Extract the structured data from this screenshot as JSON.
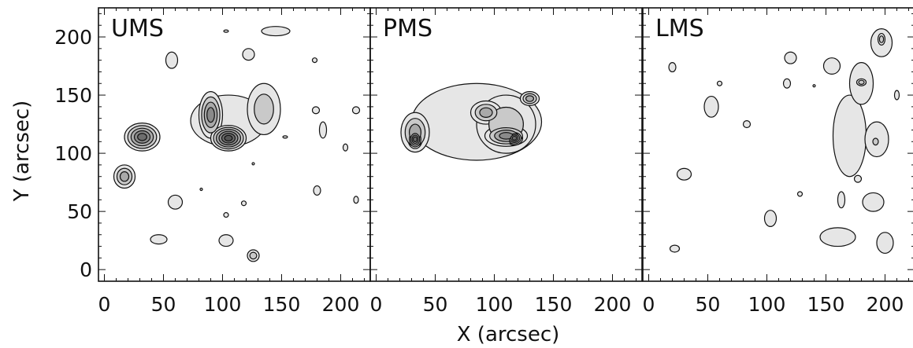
{
  "chart_data": {
    "type": "contour",
    "xlabel": "X (arcsec)",
    "ylabel": "Y (arcsec)",
    "xlim": [
      -5,
      225
    ],
    "ylim": [
      -10,
      225
    ],
    "xticks": [
      "0",
      "50",
      "100",
      "150",
      "200"
    ],
    "yticks": [
      "0",
      "50",
      "100",
      "150",
      "200"
    ],
    "fill_colors": [
      "#e6e6e6",
      "#c9c9c9",
      "#a9a9a9",
      "#8a8a8a",
      "#6e6e6e",
      "#555555"
    ],
    "line_color": "#111111",
    "panels": [
      {
        "label": "UMS",
        "regions": [
          {
            "cx": 105,
            "cy": 128,
            "rx": 32,
            "ry": 22,
            "levels": 1
          },
          {
            "cx": 135,
            "cy": 138,
            "rx": 14,
            "ry": 22,
            "levels": 2
          },
          {
            "cx": 90,
            "cy": 133,
            "rx": 10,
            "ry": 20,
            "levels": 4
          },
          {
            "cx": 105,
            "cy": 113,
            "rx": 15,
            "ry": 11,
            "levels": 6
          },
          {
            "cx": 32,
            "cy": 114,
            "rx": 15,
            "ry": 12,
            "levels": 5
          },
          {
            "cx": 17,
            "cy": 80,
            "rx": 9,
            "ry": 10,
            "levels": 3
          },
          {
            "cx": 145,
            "cy": 205,
            "rx": 12,
            "ry": 4,
            "levels": 1
          },
          {
            "cx": 57,
            "cy": 180,
            "rx": 5,
            "ry": 7,
            "levels": 1
          },
          {
            "cx": 122,
            "cy": 185,
            "rx": 5,
            "ry": 5,
            "levels": 1
          },
          {
            "cx": 60,
            "cy": 58,
            "rx": 6,
            "ry": 6,
            "levels": 1
          },
          {
            "cx": 46,
            "cy": 26,
            "rx": 7,
            "ry": 4,
            "levels": 1
          },
          {
            "cx": 103,
            "cy": 25,
            "rx": 6,
            "ry": 5,
            "levels": 1
          },
          {
            "cx": 126,
            "cy": 12,
            "rx": 5,
            "ry": 5,
            "levels": 2
          },
          {
            "cx": 185,
            "cy": 120,
            "rx": 3,
            "ry": 7,
            "levels": 1
          },
          {
            "cx": 179,
            "cy": 137,
            "rx": 3,
            "ry": 3,
            "levels": 1
          },
          {
            "cx": 213,
            "cy": 137,
            "rx": 3,
            "ry": 3,
            "levels": 1
          },
          {
            "cx": 204,
            "cy": 105,
            "rx": 2,
            "ry": 3,
            "levels": 1
          },
          {
            "cx": 180,
            "cy": 68,
            "rx": 3,
            "ry": 4,
            "levels": 1
          },
          {
            "cx": 213,
            "cy": 60,
            "rx": 2,
            "ry": 3,
            "levels": 1
          },
          {
            "cx": 103,
            "cy": 205,
            "rx": 2,
            "ry": 1,
            "levels": 1
          },
          {
            "cx": 178,
            "cy": 180,
            "rx": 2,
            "ry": 2,
            "levels": 1
          },
          {
            "cx": 153,
            "cy": 114,
            "rx": 2,
            "ry": 1,
            "levels": 1
          },
          {
            "cx": 103,
            "cy": 47,
            "rx": 2,
            "ry": 2,
            "levels": 1
          },
          {
            "cx": 118,
            "cy": 57,
            "rx": 2,
            "ry": 2,
            "levels": 1
          },
          {
            "cx": 82,
            "cy": 69,
            "rx": 1,
            "ry": 1,
            "levels": 1
          },
          {
            "cx": 126,
            "cy": 91,
            "rx": 1,
            "ry": 1,
            "levels": 1
          }
        ]
      },
      {
        "label": "PMS",
        "regions": [
          {
            "cx": 85,
            "cy": 127,
            "rx": 55,
            "ry": 33,
            "levels": 1
          },
          {
            "cx": 110,
            "cy": 125,
            "rx": 25,
            "ry": 25,
            "levels": 2
          },
          {
            "cx": 93,
            "cy": 135,
            "rx": 13,
            "ry": 10,
            "levels": 3
          },
          {
            "cx": 130,
            "cy": 147,
            "rx": 8,
            "ry": 6,
            "levels": 3
          },
          {
            "cx": 110,
            "cy": 115,
            "rx": 18,
            "ry": 9,
            "levels": 4
          },
          {
            "cx": 117,
            "cy": 113,
            "rx": 7,
            "ry": 6,
            "levels": 5
          },
          {
            "cx": 33,
            "cy": 118,
            "rx": 12,
            "ry": 17,
            "levels": 3
          },
          {
            "cx": 33,
            "cy": 112,
            "rx": 6,
            "ry": 8,
            "levels": 5
          }
        ]
      },
      {
        "label": "LMS",
        "regions": [
          {
            "cx": 170,
            "cy": 115,
            "rx": 14,
            "ry": 35,
            "levels": 1
          },
          {
            "cx": 180,
            "cy": 160,
            "rx": 10,
            "ry": 18,
            "levels": 1
          },
          {
            "cx": 197,
            "cy": 195,
            "rx": 9,
            "ry": 12,
            "levels": 1
          },
          {
            "cx": 197,
            "cy": 198,
            "rx": 3,
            "ry": 5,
            "levels": 2
          },
          {
            "cx": 180,
            "cy": 161,
            "rx": 4,
            "ry": 3,
            "levels": 2
          },
          {
            "cx": 192,
            "cy": 110,
            "rx": 4,
            "ry": 5,
            "levels": 2
          },
          {
            "cx": 193,
            "cy": 112,
            "rx": 10,
            "ry": 15,
            "levels": 1
          },
          {
            "cx": 160,
            "cy": 28,
            "rx": 15,
            "ry": 8,
            "levels": 1
          },
          {
            "cx": 200,
            "cy": 23,
            "rx": 7,
            "ry": 9,
            "levels": 1
          },
          {
            "cx": 190,
            "cy": 58,
            "rx": 9,
            "ry": 8,
            "levels": 1
          },
          {
            "cx": 120,
            "cy": 182,
            "rx": 5,
            "ry": 5,
            "levels": 1
          },
          {
            "cx": 155,
            "cy": 175,
            "rx": 7,
            "ry": 7,
            "levels": 1
          },
          {
            "cx": 53,
            "cy": 140,
            "rx": 6,
            "ry": 9,
            "levels": 1
          },
          {
            "cx": 30,
            "cy": 82,
            "rx": 6,
            "ry": 5,
            "levels": 1
          },
          {
            "cx": 103,
            "cy": 44,
            "rx": 5,
            "ry": 7,
            "levels": 1
          },
          {
            "cx": 22,
            "cy": 18,
            "rx": 4,
            "ry": 3,
            "levels": 1
          },
          {
            "cx": 20,
            "cy": 174,
            "rx": 3,
            "ry": 4,
            "levels": 1
          },
          {
            "cx": 117,
            "cy": 160,
            "rx": 3,
            "ry": 4,
            "levels": 1
          },
          {
            "cx": 163,
            "cy": 60,
            "rx": 3,
            "ry": 7,
            "levels": 1
          },
          {
            "cx": 177,
            "cy": 78,
            "rx": 3,
            "ry": 3,
            "levels": 1
          },
          {
            "cx": 83,
            "cy": 125,
            "rx": 3,
            "ry": 3,
            "levels": 1
          },
          {
            "cx": 210,
            "cy": 150,
            "rx": 2,
            "ry": 4,
            "levels": 1
          },
          {
            "cx": 60,
            "cy": 160,
            "rx": 2,
            "ry": 2,
            "levels": 1
          },
          {
            "cx": 128,
            "cy": 65,
            "rx": 2,
            "ry": 2,
            "levels": 1
          },
          {
            "cx": 140,
            "cy": 158,
            "rx": 1,
            "ry": 1,
            "levels": 1
          }
        ]
      }
    ]
  }
}
